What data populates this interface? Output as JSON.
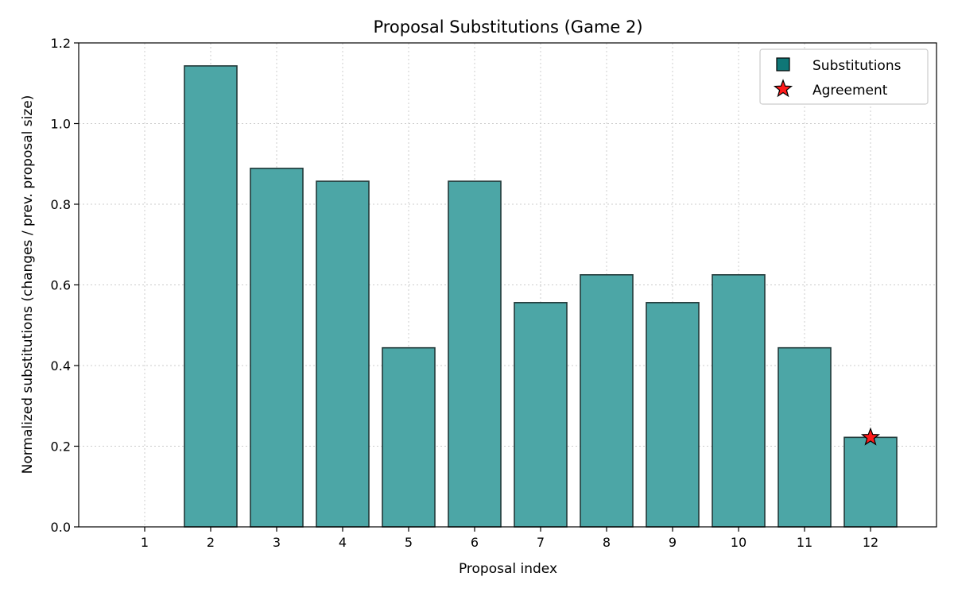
{
  "chart_data": {
    "type": "bar",
    "title": "Proposal Substitutions (Game 2)",
    "xlabel": "Proposal index",
    "ylabel": "Normalized substitutions (changes / prev. proposal size)",
    "categories": [
      "1",
      "2",
      "3",
      "4",
      "5",
      "6",
      "7",
      "8",
      "9",
      "10",
      "11",
      "12"
    ],
    "values": [
      0.0,
      1.143,
      0.889,
      0.857,
      0.444,
      0.857,
      0.556,
      0.625,
      0.556,
      0.625,
      0.444,
      0.222
    ],
    "ylim": [
      0,
      1.2
    ],
    "yticks": [
      "0.0",
      "0.2",
      "0.4",
      "0.6",
      "0.8",
      "1.0",
      "1.2"
    ],
    "grid": true,
    "legend_position": "top-right",
    "legend": [
      {
        "label": "Substitutions",
        "marker": "square"
      },
      {
        "label": "Agreement",
        "marker": "star"
      }
    ],
    "agreement": {
      "category": "12",
      "value": 0.222
    },
    "colors": {
      "bar_fill": "#4ca6a6",
      "legend_square": "#0f7777",
      "star": "#ff1a1a"
    }
  }
}
